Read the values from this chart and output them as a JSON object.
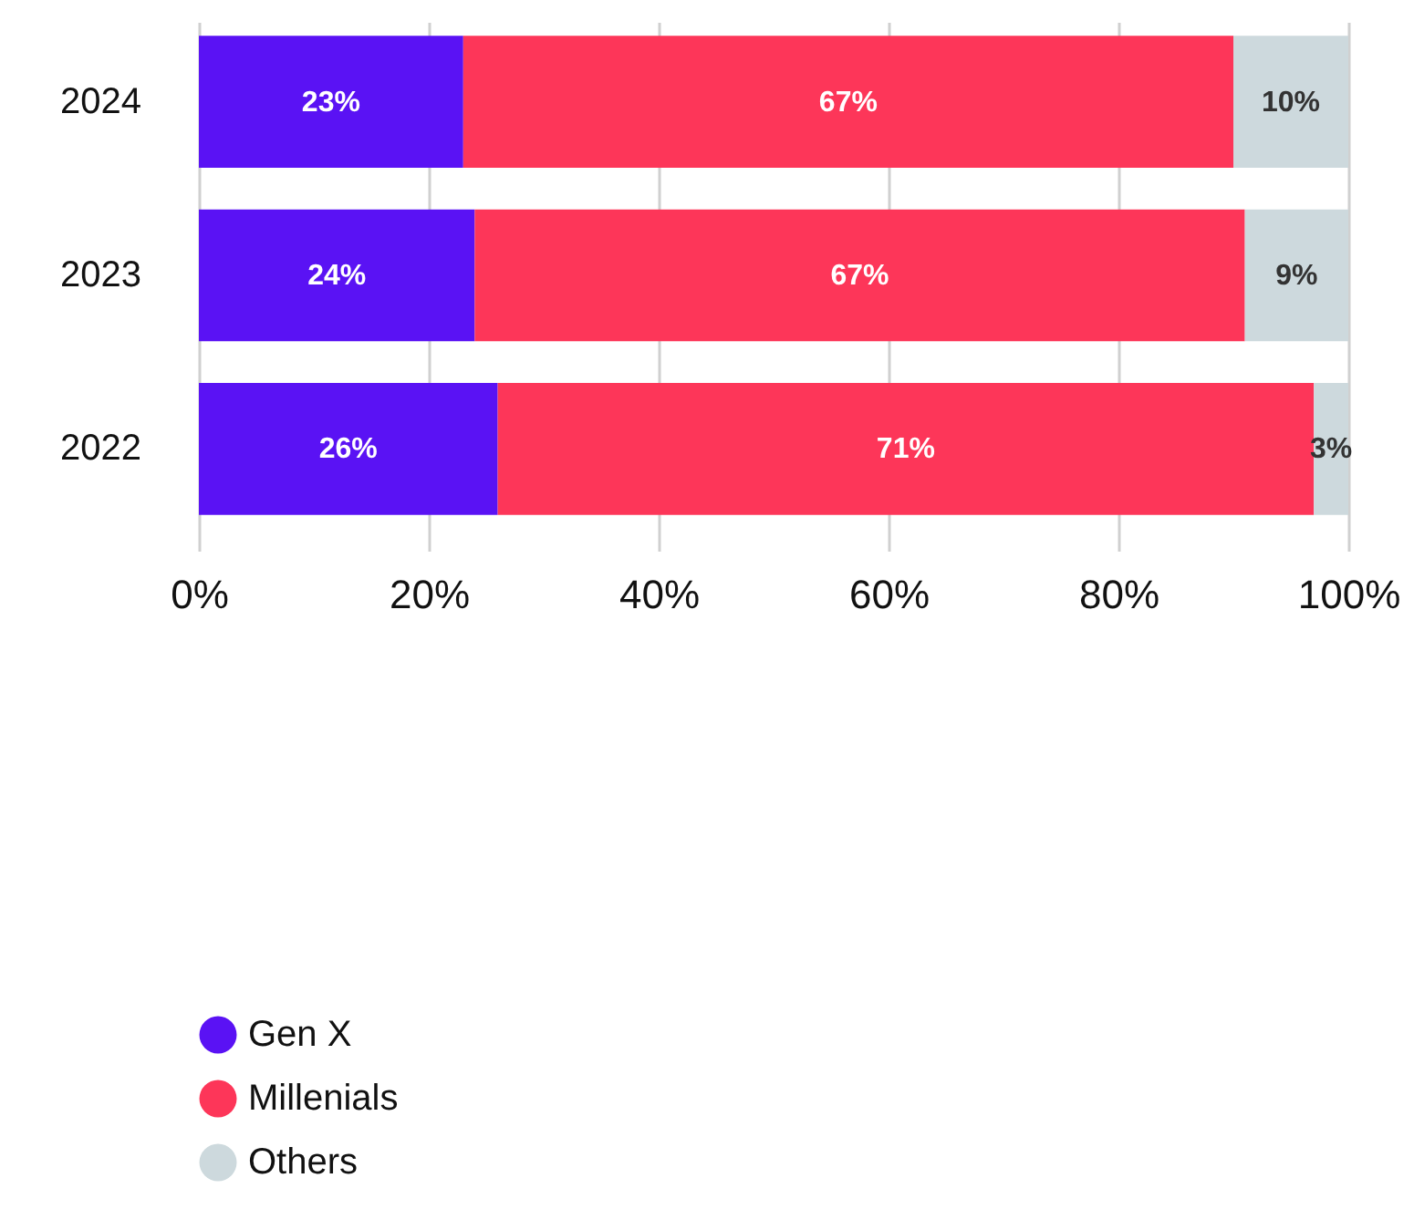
{
  "chart_data": {
    "type": "bar",
    "orientation": "horizontal",
    "stacked": true,
    "categories": [
      "2024",
      "2023",
      "2022"
    ],
    "series": [
      {
        "name": "Gen X",
        "color": "#5a12f4",
        "values": [
          23,
          24,
          26
        ],
        "value_labels": [
          "23%",
          "24%",
          "26%"
        ]
      },
      {
        "name": "Millenials",
        "color": "#fd3659",
        "values": [
          67,
          67,
          71
        ],
        "value_labels": [
          "67%",
          "67%",
          "71%"
        ]
      },
      {
        "name": "Others",
        "color": "#cdd9dd",
        "values": [
          10,
          9,
          3
        ],
        "value_labels": [
          "10%",
          "9%",
          "3%"
        ]
      }
    ],
    "xlim": [
      0,
      100
    ],
    "xticks": [
      {
        "value": 0,
        "label": "0%"
      },
      {
        "value": 20,
        "label": "20%"
      },
      {
        "value": 40,
        "label": "40%"
      },
      {
        "value": 60,
        "label": "60%"
      },
      {
        "value": 80,
        "label": "80%"
      },
      {
        "value": 100,
        "label": "100%"
      }
    ],
    "grid": "x",
    "legend": "bottom left"
  }
}
